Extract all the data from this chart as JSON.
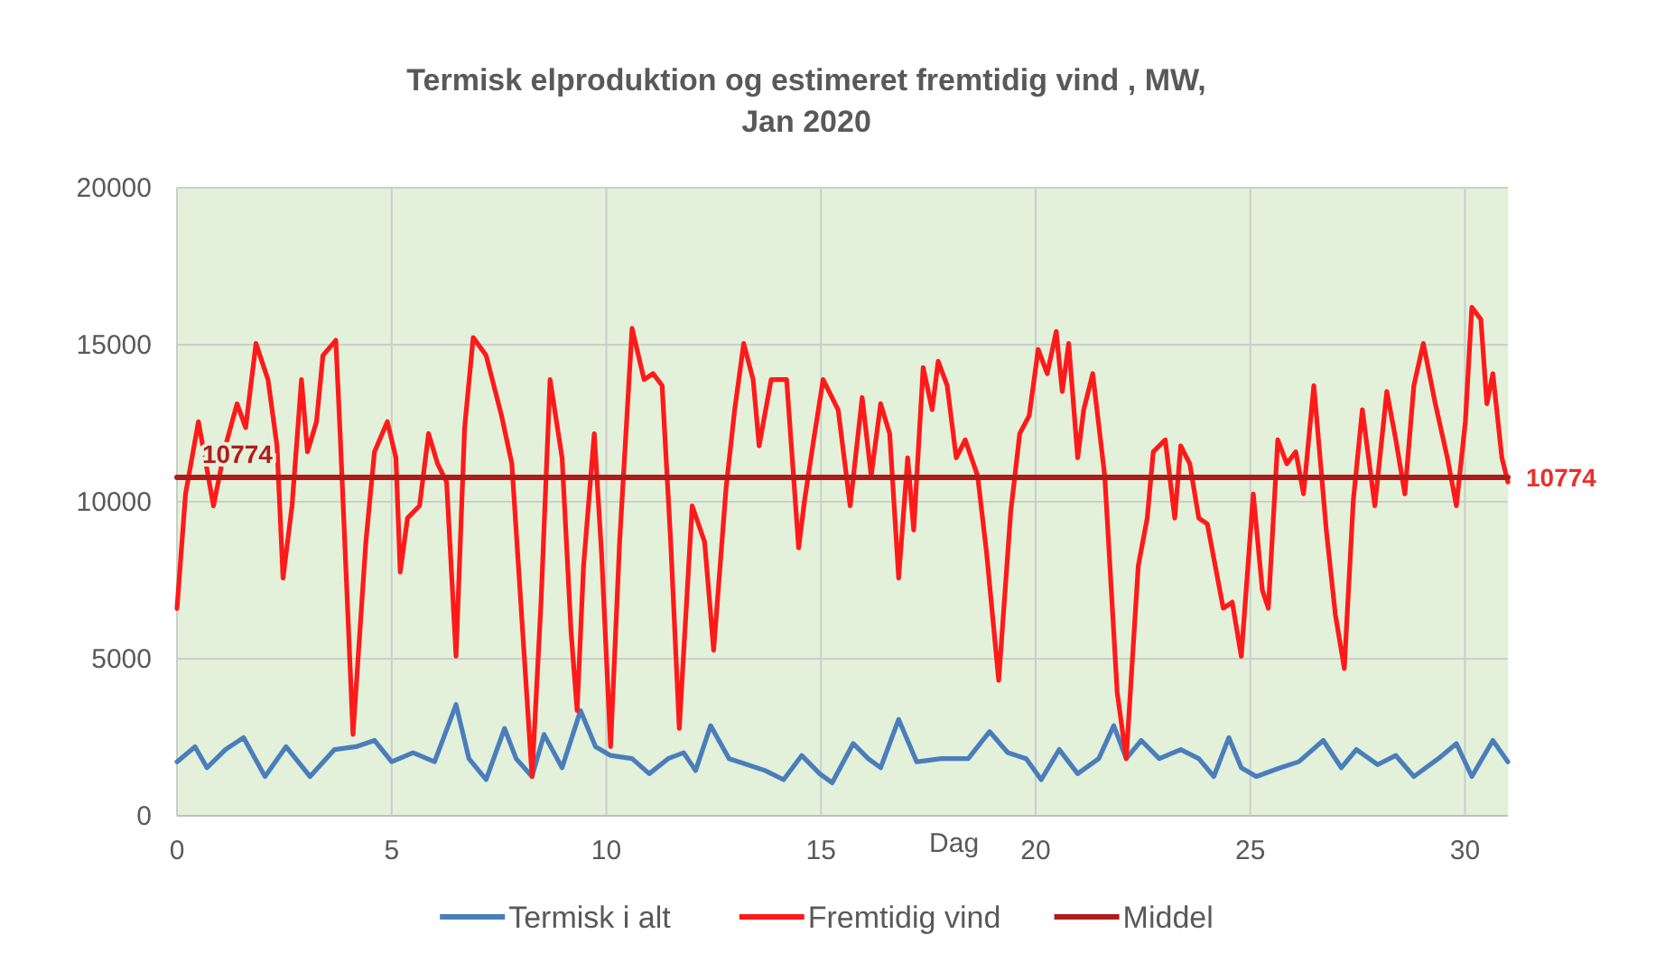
{
  "chart_data": {
    "type": "line",
    "title": "Termisk elproduktion og estimeret fremtidig vind , MW,\nJan 2020",
    "xlabel": "Dag",
    "xlim": [
      0,
      31
    ],
    "xticks": [
      0,
      5,
      10,
      15,
      20,
      25,
      30
    ],
    "ylim": [
      0,
      20000
    ],
    "yticks": [
      0,
      5000,
      10000,
      15000,
      20000
    ],
    "grid": true,
    "legend": "bottom",
    "series": [
      {
        "name": "Termisk i alt",
        "color": "#4a7ebb",
        "x": [
          0,
          0.42,
          0.7,
          1.13,
          1.55,
          2.05,
          2.54,
          3.1,
          3.67,
          4.17,
          4.6,
          5.0,
          5.5,
          6.0,
          6.5,
          6.8,
          7.2,
          7.63,
          7.9,
          8.27,
          8.55,
          8.97,
          9.4,
          9.75,
          10.1,
          10.6,
          11.0,
          11.44,
          11.8,
          12.08,
          12.43,
          12.86,
          13.28,
          13.7,
          14.13,
          14.55,
          14.97,
          15.26,
          15.75,
          16.1,
          16.39,
          16.81,
          17.23,
          17.8,
          18.43,
          18.93,
          19.35,
          19.78,
          20.13,
          20.55,
          20.98,
          21.47,
          21.82,
          22.11,
          22.46,
          22.88,
          23.38,
          23.8,
          24.15,
          24.5,
          24.79,
          25.14,
          25.7,
          26.13,
          26.7,
          27.12,
          27.47,
          27.97,
          28.39,
          28.81,
          29.38,
          29.8,
          30.16,
          30.65,
          31
        ],
        "values": [
          1720,
          2200,
          1530,
          2110,
          2490,
          1250,
          2200,
          1250,
          2110,
          2200,
          2400,
          1720,
          2010,
          1720,
          3540,
          1820,
          1150,
          2780,
          1820,
          1250,
          2590,
          1530,
          3350,
          2200,
          1920,
          1820,
          1340,
          1820,
          2010,
          1440,
          2870,
          1820,
          1630,
          1440,
          1150,
          1920,
          1340,
          1050,
          2300,
          1820,
          1530,
          3070,
          1720,
          1820,
          1820,
          2680,
          2010,
          1820,
          1150,
          2110,
          1340,
          1820,
          2870,
          1820,
          2400,
          1820,
          2110,
          1820,
          1250,
          2490,
          1530,
          1250,
          1530,
          1720,
          2400,
          1530,
          2110,
          1630,
          1920,
          1250,
          1820,
          2300,
          1250,
          2400,
          1720
        ]
      },
      {
        "name": "Fremtidig vind",
        "color": "#ff1a1a",
        "x": [
          0,
          0.2,
          0.5,
          0.85,
          1.13,
          1.4,
          1.6,
          1.84,
          2.12,
          2.33,
          2.47,
          2.68,
          2.9,
          3.04,
          3.25,
          3.4,
          3.7,
          3.8,
          4.1,
          4.4,
          4.6,
          4.9,
          5.1,
          5.2,
          5.37,
          5.65,
          5.86,
          6.07,
          6.28,
          6.5,
          6.7,
          6.9,
          7.2,
          7.56,
          7.8,
          8.27,
          8.48,
          8.69,
          8.97,
          9.18,
          9.32,
          9.47,
          9.72,
          9.89,
          10.1,
          10.31,
          10.6,
          10.88,
          11.09,
          11.3,
          11.5,
          11.7,
          12.0,
          12.29,
          12.5,
          12.79,
          12.99,
          13.2,
          13.42,
          13.56,
          13.84,
          14.2,
          14.48,
          14.62,
          14.83,
          15.05,
          15.4,
          15.68,
          15.96,
          16.17,
          16.39,
          16.6,
          16.81,
          17.02,
          17.16,
          17.38,
          17.59,
          17.73,
          17.94,
          18.15,
          18.36,
          18.65,
          18.86,
          19.14,
          19.42,
          19.63,
          19.85,
          20.06,
          20.27,
          20.48,
          20.62,
          20.77,
          20.98,
          21.12,
          21.33,
          21.61,
          21.9,
          22.11,
          22.39,
          22.6,
          22.74,
          23.02,
          23.24,
          23.38,
          23.59,
          23.8,
          24.0,
          24.37,
          24.58,
          24.79,
          25.07,
          25.28,
          25.42,
          25.64,
          25.85,
          26.06,
          26.24,
          26.48,
          26.77,
          26.98,
          27.19,
          27.4,
          27.61,
          27.9,
          28.18,
          28.39,
          28.6,
          28.81,
          29.03,
          29.31,
          29.59,
          29.8,
          30.01,
          30.16,
          30.37,
          30.51,
          30.65,
          30.86,
          31
        ],
        "values": [
          6600,
          10250,
          12550,
          9870,
          11780,
          13120,
          12360,
          15040,
          13890,
          11780,
          7570,
          9870,
          13890,
          11590,
          12550,
          14660,
          15140,
          12170,
          2590,
          8720,
          11590,
          12550,
          11400,
          7760,
          9480,
          9870,
          12170,
          11210,
          10630,
          5080,
          12360,
          15230,
          14660,
          12740,
          11210,
          1250,
          6800,
          13890,
          11400,
          5840,
          3350,
          7950,
          12170,
          8340,
          2200,
          8720,
          15520,
          13890,
          14080,
          13700,
          8720,
          2780,
          9870,
          8720,
          5270,
          10440,
          12930,
          15040,
          13890,
          11780,
          13890,
          13890,
          8530,
          10060,
          11970,
          13890,
          12930,
          9870,
          13320,
          10820,
          13120,
          12170,
          7570,
          11400,
          9100,
          14270,
          12930,
          14470,
          13700,
          11400,
          11970,
          10820,
          8340,
          4310,
          9680,
          12170,
          12740,
          14850,
          14080,
          15420,
          13510,
          15040,
          11400,
          12930,
          14080,
          10820,
          3930,
          1820,
          7950,
          9480,
          11590,
          11970,
          9480,
          11780,
          11210,
          9480,
          9290,
          6610,
          6800,
          5080,
          10250,
          7190,
          6610,
          11970,
          11210,
          11590,
          10250,
          13700,
          9100,
          6420,
          4690,
          10060,
          12930,
          9870,
          13510,
          11970,
          10250,
          13700,
          15040,
          13120,
          11400,
          9870,
          12550,
          16190,
          15810,
          13120,
          14080,
          11400,
          10630
        ]
      },
      {
        "name": "Middel",
        "color": "#b01c1c",
        "x": [
          0,
          31
        ],
        "values": [
          10774,
          10774
        ],
        "value_labels": [
          "10774",
          "10774"
        ]
      }
    ]
  }
}
